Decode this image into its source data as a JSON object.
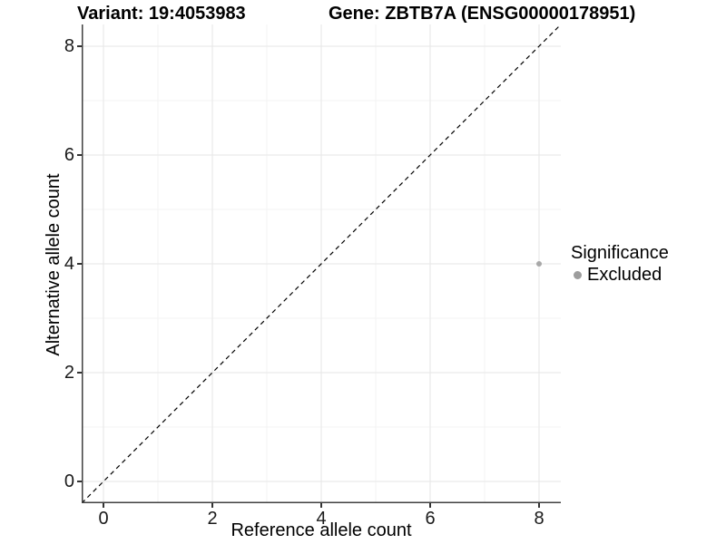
{
  "title": {
    "variant": "Variant: 19:4053983",
    "gene": "Gene: ZBTB7A (ENSG00000178951)"
  },
  "chart_data": {
    "type": "scatter",
    "title": "Variant: 19:4053983   Gene: ZBTB7A (ENSG00000178951)",
    "xlabel": "Reference allele count",
    "ylabel": "Alternative allele count",
    "xlim": [
      -0.4,
      8.4
    ],
    "ylim": [
      -0.4,
      8.4
    ],
    "x_ticks": [
      0,
      2,
      4,
      6,
      8
    ],
    "y_ticks": [
      0,
      2,
      4,
      6,
      8
    ],
    "x_minor_ticks": [
      1,
      3,
      5,
      7
    ],
    "y_minor_ticks": [
      1,
      3,
      5,
      7
    ],
    "grid": true,
    "series": [
      {
        "name": "Excluded",
        "points": [
          {
            "x": 8,
            "y": 4
          }
        ],
        "color": "#a8a8a8",
        "point_radius": 3
      }
    ],
    "identity_line": {
      "style": "dashed",
      "slope": 1,
      "intercept": 0,
      "color": "#000000"
    },
    "legend": {
      "position": "right",
      "title": "Significance",
      "items": [
        {
          "label": "Excluded",
          "color": "#9d9d9d"
        }
      ]
    },
    "colors": {
      "background": "#ffffff",
      "major_grid": "#e6e6e6",
      "minor_grid": "#f3f3f3",
      "axis_line": "#404040",
      "text": "#000000"
    }
  }
}
